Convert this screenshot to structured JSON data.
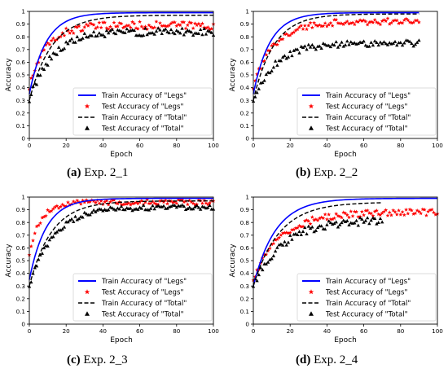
{
  "chart_data": [
    {
      "type": "line",
      "caption_label": "(a)",
      "caption_text": "Exp. 2_1",
      "xlabel": "Epoch",
      "ylabel": "Accuracy",
      "xlim": [
        0,
        100
      ],
      "ylim": [
        0,
        1.0
      ],
      "xticks": [
        0,
        20,
        40,
        60,
        80,
        100
      ],
      "yticks": [
        0,
        0.1,
        0.2,
        0.3,
        0.4,
        0.5,
        0.6,
        0.7,
        0.8,
        0.9,
        1.0
      ],
      "legend_position": "lower-right",
      "series": [
        {
          "name": "Train Accuracy of \"Legs\"",
          "style": "solid-line",
          "color": "#0000ff",
          "curve": {
            "y0": 0.35,
            "yEnd": 0.99,
            "tau": 9,
            "n": 100
          }
        },
        {
          "name": "Test Accuracy of \"Legs\"",
          "style": "star-markers",
          "color": "#ff0000",
          "curve": {
            "y0": 0.4,
            "yEnd": 0.89,
            "tau": 9,
            "n": 100,
            "noise": 0.03
          }
        },
        {
          "name": "Train Accuracy of \"Total\"",
          "style": "dashed-line",
          "color": "#000000",
          "curve": {
            "y0": 0.3,
            "yEnd": 0.97,
            "tau": 12,
            "n": 100
          }
        },
        {
          "name": "Test Accuracy of \"Total\"",
          "style": "triangle-markers",
          "color": "#000000",
          "curve": {
            "y0": 0.3,
            "yEnd": 0.84,
            "tau": 12,
            "n": 100,
            "noise": 0.03
          }
        }
      ]
    },
    {
      "type": "line",
      "caption_label": "(b)",
      "caption_text": "Exp. 2_2",
      "xlabel": "Epoch",
      "ylabel": "Accuracy",
      "xlim": [
        0,
        100
      ],
      "ylim": [
        0,
        1.0
      ],
      "xticks": [
        0,
        20,
        40,
        60,
        80,
        100
      ],
      "yticks": [
        0,
        0.1,
        0.2,
        0.3,
        0.4,
        0.5,
        0.6,
        0.7,
        0.8,
        0.9,
        1.0
      ],
      "legend_position": "lower-right",
      "series": [
        {
          "name": "Train Accuracy of \"Legs\"",
          "style": "solid-line",
          "color": "#0000ff",
          "curve": {
            "y0": 0.35,
            "yEnd": 0.99,
            "tau": 9,
            "n": 90
          }
        },
        {
          "name": "Test Accuracy of \"Legs\"",
          "style": "star-markers",
          "color": "#ff0000",
          "curve": {
            "y0": 0.4,
            "yEnd": 0.92,
            "tau": 11,
            "n": 90,
            "noise": 0.025
          }
        },
        {
          "name": "Train Accuracy of \"Total\"",
          "style": "dashed-line",
          "color": "#000000",
          "curve": {
            "y0": 0.3,
            "yEnd": 0.98,
            "tau": 11,
            "n": 90
          }
        },
        {
          "name": "Test Accuracy of \"Total\"",
          "style": "triangle-markers",
          "color": "#000000",
          "curve": {
            "y0": 0.3,
            "yEnd": 0.75,
            "tau": 12,
            "n": 90,
            "noise": 0.025
          }
        }
      ]
    },
    {
      "type": "line",
      "caption_label": "(c)",
      "caption_text": "Exp. 2_3",
      "xlabel": "Epoch",
      "ylabel": "Accuracy",
      "xlim": [
        0,
        100
      ],
      "ylim": [
        0,
        1.0
      ],
      "xticks": [
        0,
        20,
        40,
        60,
        80,
        100
      ],
      "yticks": [
        0,
        0.1,
        0.2,
        0.3,
        0.4,
        0.5,
        0.6,
        0.7,
        0.8,
        0.9,
        1.0
      ],
      "legend_position": "lower-right",
      "series": [
        {
          "name": "Train Accuracy of \"Legs\"",
          "style": "solid-line",
          "color": "#0000ff",
          "curve": {
            "y0": 0.35,
            "yEnd": 0.99,
            "tau": 9,
            "n": 100
          }
        },
        {
          "name": "Test Accuracy of \"Legs\"",
          "style": "star-markers",
          "color": "#ff0000",
          "curve": {
            "y0": 0.55,
            "yEnd": 0.96,
            "tau": 6,
            "n": 100,
            "noise": 0.02
          }
        },
        {
          "name": "Train Accuracy of \"Total\"",
          "style": "dashed-line",
          "color": "#000000",
          "curve": {
            "y0": 0.3,
            "yEnd": 0.97,
            "tau": 12,
            "n": 100
          }
        },
        {
          "name": "Test Accuracy of \"Total\"",
          "style": "triangle-markers",
          "color": "#000000",
          "curve": {
            "y0": 0.3,
            "yEnd": 0.92,
            "tau": 13,
            "n": 100,
            "noise": 0.02
          }
        }
      ]
    },
    {
      "type": "line",
      "caption_label": "(d)",
      "caption_text": "Exp. 2_4",
      "xlabel": "Epoch",
      "ylabel": "Accuracy",
      "xlim": [
        0,
        100
      ],
      "ylim": [
        0,
        1.0
      ],
      "xticks": [
        0,
        20,
        40,
        60,
        80,
        100
      ],
      "yticks": [
        0,
        0.1,
        0.2,
        0.3,
        0.4,
        0.5,
        0.6,
        0.7,
        0.8,
        0.9,
        1.0
      ],
      "legend_position": "lower-right",
      "series": [
        {
          "name": "Train Accuracy of \"Legs\"",
          "style": "solid-line",
          "color": "#0000ff",
          "curve": {
            "y0": 0.3,
            "yEnd": 0.99,
            "tau": 12,
            "n": 100
          }
        },
        {
          "name": "Test Accuracy of \"Legs\"",
          "style": "star-markers",
          "color": "#ff0000",
          "curve": {
            "y0": 0.35,
            "yEnd": 0.88,
            "tau": 15,
            "n": 100,
            "noise": 0.025
          }
        },
        {
          "name": "Train Accuracy of \"Total\"",
          "style": "dashed-line",
          "color": "#000000",
          "curve": {
            "y0": 0.3,
            "yEnd": 0.96,
            "tau": 14,
            "n": 70
          }
        },
        {
          "name": "Test Accuracy of \"Total\"",
          "style": "triangle-markers",
          "color": "#000000",
          "curve": {
            "y0": 0.3,
            "yEnd": 0.82,
            "tau": 16,
            "n": 70,
            "noise": 0.03
          }
        }
      ]
    }
  ]
}
